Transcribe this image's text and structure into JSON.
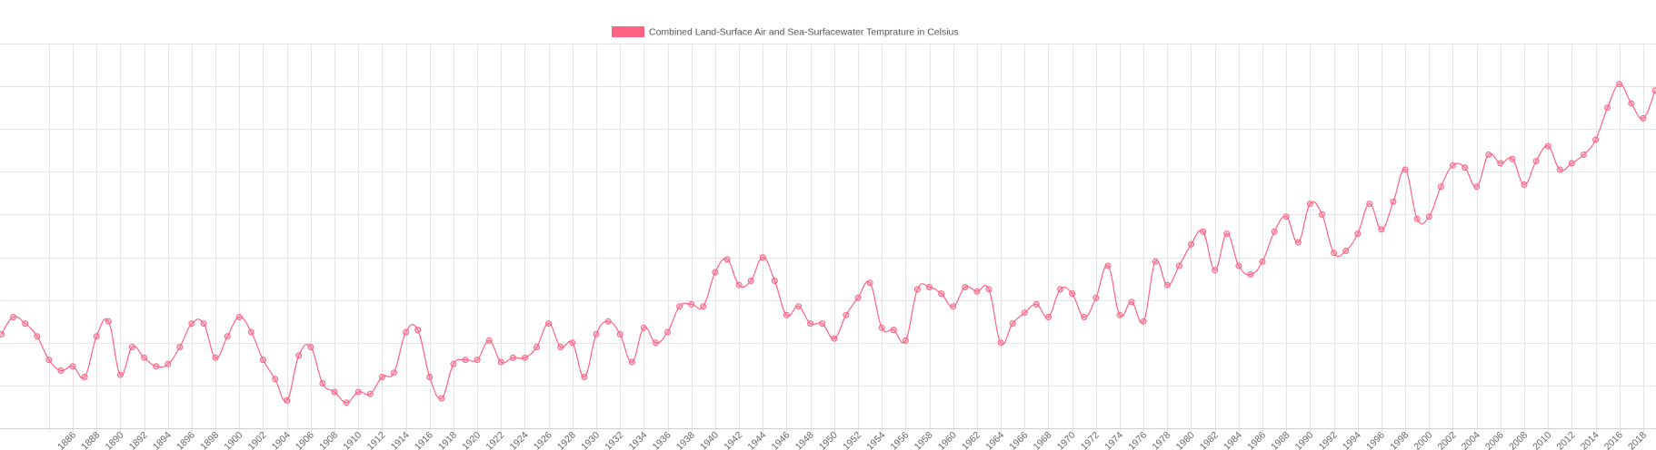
{
  "chart_data": {
    "type": "line",
    "title": "",
    "xlabel": "",
    "ylabel": "",
    "legend": {
      "position": "top-center",
      "entries": [
        {
          "label": "Combined Land-Surface Air and Sea-Surfacewater Temprature in Celsius",
          "color": "#ff6384"
        }
      ]
    },
    "grid": true,
    "xlim": [
      1880,
      2019
    ],
    "ylim": [
      -0.6,
      1.2
    ],
    "y_gridlines": [
      -0.6,
      -0.4,
      -0.2,
      0.0,
      0.2,
      0.4,
      0.6,
      0.8,
      1.0,
      1.2
    ],
    "x_tick_labels": [
      "1886",
      "1888",
      "1890",
      "1892",
      "1894",
      "1896",
      "1898",
      "1900",
      "1902",
      "1904",
      "1906",
      "1908",
      "1910",
      "1912",
      "1914",
      "1916",
      "1918",
      "1920",
      "1922",
      "1924",
      "1926",
      "1928",
      "1930",
      "1932",
      "1934",
      "1936",
      "1938",
      "1940",
      "1942",
      "1944",
      "1946",
      "1948",
      "1950",
      "1952",
      "1954",
      "1956",
      "1958",
      "1960",
      "1962",
      "1964",
      "1966",
      "1968",
      "1970",
      "1972",
      "1974",
      "1976",
      "1978",
      "1980",
      "1982",
      "1984",
      "1986",
      "1988",
      "1990",
      "1992",
      "1994",
      "1996",
      "1998",
      "2000",
      "2002",
      "2004",
      "2006",
      "2008",
      "2010",
      "2012",
      "2014",
      "2016",
      "2018"
    ],
    "x": [
      1880,
      1881,
      1882,
      1883,
      1884,
      1885,
      1886,
      1887,
      1888,
      1889,
      1890,
      1891,
      1892,
      1893,
      1894,
      1895,
      1896,
      1897,
      1898,
      1899,
      1900,
      1901,
      1902,
      1903,
      1904,
      1905,
      1906,
      1907,
      1908,
      1909,
      1910,
      1911,
      1912,
      1913,
      1914,
      1915,
      1916,
      1917,
      1918,
      1919,
      1920,
      1921,
      1922,
      1923,
      1924,
      1925,
      1926,
      1927,
      1928,
      1929,
      1930,
      1931,
      1932,
      1933,
      1934,
      1935,
      1936,
      1937,
      1938,
      1939,
      1940,
      1941,
      1942,
      1943,
      1944,
      1945,
      1946,
      1947,
      1948,
      1949,
      1950,
      1951,
      1952,
      1953,
      1954,
      1955,
      1956,
      1957,
      1958,
      1959,
      1960,
      1961,
      1962,
      1963,
      1964,
      1965,
      1966,
      1967,
      1968,
      1969,
      1970,
      1971,
      1972,
      1973,
      1974,
      1975,
      1976,
      1977,
      1978,
      1979,
      1980,
      1981,
      1982,
      1983,
      1984,
      1985,
      1986,
      1987,
      1988,
      1989,
      1990,
      1991,
      1992,
      1993,
      1994,
      1995,
      1996,
      1997,
      1998,
      1999,
      2000,
      2001,
      2002,
      2003,
      2004,
      2005,
      2006,
      2007,
      2008,
      2009,
      2010,
      2011,
      2012,
      2013,
      2014,
      2015,
      2016,
      2017,
      2018,
      2019
    ],
    "series": [
      {
        "name": "Combined Land-Surface Air and Sea-Surfacewater Temprature in Celsius",
        "color": "#ff6384",
        "values": [
          -0.16,
          -0.08,
          -0.11,
          -0.17,
          -0.28,
          -0.33,
          -0.31,
          -0.36,
          -0.17,
          -0.1,
          -0.35,
          -0.22,
          -0.27,
          -0.31,
          -0.3,
          -0.22,
          -0.11,
          -0.11,
          -0.27,
          -0.17,
          -0.08,
          -0.15,
          -0.28,
          -0.37,
          -0.47,
          -0.26,
          -0.22,
          -0.39,
          -0.43,
          -0.48,
          -0.43,
          -0.44,
          -0.36,
          -0.34,
          -0.15,
          -0.14,
          -0.36,
          -0.46,
          -0.3,
          -0.28,
          -0.28,
          -0.19,
          -0.29,
          -0.27,
          -0.27,
          -0.22,
          -0.11,
          -0.22,
          -0.2,
          -0.36,
          -0.16,
          -0.1,
          -0.16,
          -0.29,
          -0.13,
          -0.2,
          -0.15,
          -0.03,
          -0.02,
          -0.03,
          0.13,
          0.19,
          0.07,
          0.09,
          0.2,
          0.09,
          -0.07,
          -0.03,
          -0.11,
          -0.11,
          -0.18,
          -0.07,
          0.01,
          0.08,
          -0.13,
          -0.14,
          -0.19,
          0.05,
          0.06,
          0.03,
          -0.03,
          0.06,
          0.04,
          0.05,
          -0.2,
          -0.11,
          -0.06,
          -0.02,
          -0.08,
          0.05,
          0.03,
          -0.08,
          0.01,
          0.16,
          -0.07,
          -0.01,
          -0.1,
          0.18,
          0.07,
          0.16,
          0.26,
          0.32,
          0.14,
          0.31,
          0.16,
          0.12,
          0.18,
          0.32,
          0.39,
          0.27,
          0.45,
          0.4,
          0.22,
          0.23,
          0.31,
          0.45,
          0.33,
          0.46,
          0.61,
          0.38,
          0.39,
          0.53,
          0.63,
          0.62,
          0.53,
          0.68,
          0.64,
          0.66,
          0.54,
          0.65,
          0.72,
          0.61,
          0.64,
          0.68,
          0.75,
          0.9,
          1.01,
          0.92,
          0.85,
          0.98
        ]
      }
    ]
  }
}
